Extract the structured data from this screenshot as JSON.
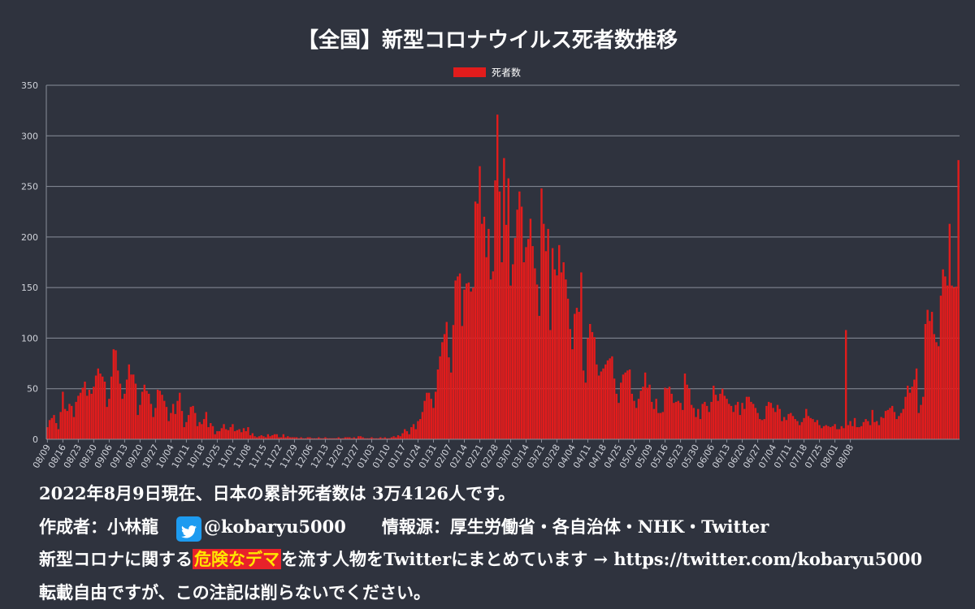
{
  "chart_data": {
    "type": "bar",
    "title": "【全国】新型コロナウイルス死者数推移",
    "legend": {
      "label": "死者数",
      "placement": "top-center"
    },
    "series": [
      {
        "name": "死者数",
        "color": "#e21c1c"
      }
    ],
    "ylim": [
      0,
      350
    ],
    "yticks": [
      0,
      50,
      100,
      150,
      200,
      250,
      300,
      350
    ],
    "grid": true,
    "start_date": "2021-08-09",
    "x_tick_labels": [
      "08/09",
      "08/16",
      "08/23",
      "08/30",
      "09/06",
      "09/13",
      "09/20",
      "09/27",
      "10/04",
      "10/11",
      "10/18",
      "10/25",
      "11/01",
      "11/08",
      "11/15",
      "11/22",
      "11/29",
      "12/06",
      "12/13",
      "12/20",
      "12/27",
      "01/03",
      "01/10",
      "01/17",
      "01/24",
      "01/31",
      "02/07",
      "02/14",
      "02/21",
      "02/28",
      "03/07",
      "03/14",
      "03/21",
      "03/28",
      "04/04",
      "04/11",
      "04/18",
      "04/25",
      "05/02",
      "05/09",
      "05/16",
      "05/23",
      "05/30",
      "06/06",
      "06/13",
      "06/20",
      "06/27",
      "07/04",
      "07/11",
      "07/18",
      "07/25",
      "08/01",
      "08/08"
    ],
    "values": [
      12,
      19,
      21,
      24,
      16,
      10,
      27,
      47,
      30,
      28,
      35,
      33,
      22,
      37,
      43,
      46,
      51,
      57,
      43,
      49,
      45,
      52,
      63,
      70,
      65,
      62,
      57,
      32,
      40,
      62,
      89,
      88,
      68,
      55,
      40,
      45,
      59,
      74,
      64,
      64,
      55,
      24,
      34,
      47,
      54,
      48,
      45,
      35,
      22,
      31,
      49,
      48,
      44,
      38,
      32,
      18,
      26,
      35,
      25,
      38,
      46,
      28,
      12,
      17,
      24,
      32,
      33,
      26,
      13,
      17,
      15,
      20,
      27,
      12,
      16,
      13,
      5,
      8,
      8,
      11,
      15,
      10,
      9,
      12,
      15,
      8,
      9,
      10,
      7,
      11,
      8,
      12,
      4,
      6,
      3,
      2,
      3,
      4,
      3,
      2,
      5,
      3,
      4,
      5,
      5,
      2,
      2,
      5,
      2,
      3,
      2,
      2,
      2,
      2,
      1,
      2,
      1,
      1,
      2,
      2,
      1,
      1,
      1,
      2,
      1,
      1,
      2,
      1,
      1,
      1,
      1,
      1,
      2,
      1,
      1,
      2,
      2,
      2,
      1,
      2,
      1,
      3,
      3,
      2,
      1,
      1,
      1,
      2,
      1,
      1,
      1,
      2,
      1,
      2,
      1,
      1,
      2,
      3,
      2,
      4,
      3,
      6,
      10,
      8,
      5,
      12,
      15,
      10,
      18,
      20,
      27,
      38,
      46,
      46,
      40,
      31,
      47,
      69,
      82,
      96,
      104,
      116,
      81,
      66,
      113,
      157,
      161,
      164,
      112,
      148,
      154,
      155,
      146,
      150,
      235,
      233,
      270,
      213,
      220,
      180,
      208,
      158,
      166,
      256,
      321,
      245,
      175,
      278,
      212,
      258,
      152,
      173,
      199,
      227,
      245,
      230,
      175,
      190,
      198,
      218,
      191,
      169,
      153,
      122,
      248,
      213,
      186,
      208,
      108,
      189,
      168,
      162,
      192,
      165,
      175,
      158,
      139,
      109,
      89,
      124,
      130,
      126,
      165,
      68,
      56,
      100,
      114,
      106,
      101,
      74,
      63,
      67,
      70,
      74,
      78,
      80,
      82,
      60,
      45,
      36,
      56,
      64,
      66,
      68,
      69,
      45,
      38,
      31,
      40,
      48,
      52,
      66,
      51,
      54,
      37,
      30,
      40,
      26,
      26,
      27,
      51,
      50,
      52,
      45,
      36,
      37,
      38,
      36,
      29,
      65,
      54,
      50,
      34,
      31,
      22,
      30,
      20,
      35,
      37,
      33,
      27,
      37,
      53,
      44,
      38,
      45,
      50,
      43,
      40,
      35,
      33,
      27,
      34,
      37,
      24,
      36,
      30,
      42,
      42,
      37,
      35,
      31,
      26,
      20,
      19,
      20,
      33,
      37,
      36,
      31,
      27,
      34,
      30,
      18,
      22,
      19,
      25,
      26,
      23,
      20,
      18,
      14,
      17,
      21,
      30,
      23,
      21,
      20,
      17,
      19,
      14,
      11,
      13,
      14,
      13,
      12,
      13,
      15,
      10,
      10,
      13,
      11,
      108,
      14,
      18,
      13,
      21,
      12,
      12,
      13,
      17,
      20,
      18,
      14,
      29,
      17,
      18,
      14,
      22,
      21,
      28,
      29,
      31,
      33,
      27,
      20,
      23,
      26,
      30,
      42,
      53,
      46,
      52,
      59,
      70,
      26,
      34,
      42,
      114,
      128,
      117,
      126,
      104,
      96,
      92,
      142,
      168,
      161,
      152,
      213,
      152,
      150,
      151,
      276
    ]
  },
  "notes": {
    "line1": "2022年8月9日現在、日本の累計死者数は 3万4126人です。",
    "line2_prefix": "作成者：小林龍",
    "line2_handle": "@kobaryu5000",
    "line2_source": "情報源：厚生労働省・各自治体・NHK・Twitter",
    "line3_prefix": "新型コロナに関する",
    "line3_highlight": "危険なデマ",
    "line3_suffix": "を流す人物をTwitterにまとめています → https://twitter.com/kobaryu5000",
    "line4": "転載自由ですが、この注記は削らないでください。"
  },
  "colors": {
    "background": "#2f333e",
    "bar": "#e21c1c",
    "grid": "#8a8f9a",
    "highlight_bg": "#e8222a",
    "highlight_text": "#ffe600",
    "twitter": "#1d9bf0"
  },
  "icons": {
    "twitter": "twitter-bird-icon"
  }
}
